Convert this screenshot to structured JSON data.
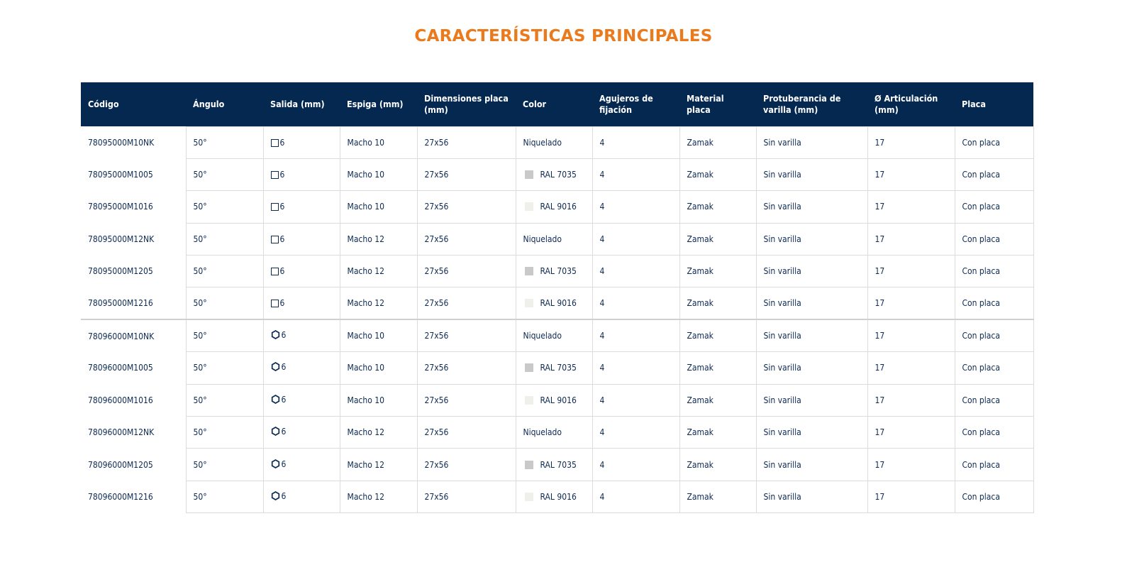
{
  "title": "CARACTERÍSTICAS PRINCIPALES",
  "colors": {
    "title": "#ea7a1c",
    "header_bg": "#052850",
    "text": "#0c2a52",
    "swatch_7035": "#c9c9c9",
    "swatch_9016": "#f0f0ea"
  },
  "headers": [
    "Código",
    "Ángulo",
    "Salida (mm)",
    "Espiga (mm)",
    "Dimensiones placa (mm)",
    "Color",
    "Agujeros de fijación",
    "Material placa",
    "Protuberancia de varilla (mm)",
    "Ø Articulación (mm)",
    "Placa"
  ],
  "rows": [
    {
      "codigo": "78095000M10NK",
      "angulo": "50°",
      "salida_icon": "square-icon",
      "salida": "6",
      "espiga": "Macho 10",
      "dimensiones": "27x56",
      "color_swatch": "",
      "color": "Niquelado",
      "agujeros": "4",
      "material": "Zamak",
      "protuberancia": "Sin varilla",
      "articulacion": "17",
      "placa": "Con placa"
    },
    {
      "codigo": "78095000M1005",
      "angulo": "50°",
      "salida_icon": "square-icon",
      "salida": "6",
      "espiga": "Macho 10",
      "dimensiones": "27x56",
      "color_swatch": "#c9c9c9",
      "color": "RAL 7035",
      "agujeros": "4",
      "material": "Zamak",
      "protuberancia": "Sin varilla",
      "articulacion": "17",
      "placa": "Con placa"
    },
    {
      "codigo": "78095000M1016",
      "angulo": "50°",
      "salida_icon": "square-icon",
      "salida": "6",
      "espiga": "Macho 10",
      "dimensiones": "27x56",
      "color_swatch": "#f0f0ea",
      "color": "RAL 9016",
      "agujeros": "4",
      "material": "Zamak",
      "protuberancia": "Sin varilla",
      "articulacion": "17",
      "placa": "Con placa"
    },
    {
      "codigo": "78095000M12NK",
      "angulo": "50°",
      "salida_icon": "square-icon",
      "salida": "6",
      "espiga": "Macho 12",
      "dimensiones": "27x56",
      "color_swatch": "",
      "color": "Niquelado",
      "agujeros": "4",
      "material": "Zamak",
      "protuberancia": "Sin varilla",
      "articulacion": "17",
      "placa": "Con placa"
    },
    {
      "codigo": "78095000M1205",
      "angulo": "50°",
      "salida_icon": "square-icon",
      "salida": "6",
      "espiga": "Macho 12",
      "dimensiones": "27x56",
      "color_swatch": "#c9c9c9",
      "color": "RAL 7035",
      "agujeros": "4",
      "material": "Zamak",
      "protuberancia": "Sin varilla",
      "articulacion": "17",
      "placa": "Con placa"
    },
    {
      "codigo": "78095000M1216",
      "angulo": "50°",
      "salida_icon": "square-icon",
      "salida": "6",
      "espiga": "Macho 12",
      "dimensiones": "27x56",
      "color_swatch": "#f0f0ea",
      "color": "RAL 9016",
      "agujeros": "4",
      "material": "Zamak",
      "protuberancia": "Sin varilla",
      "articulacion": "17",
      "placa": "Con placa"
    },
    {
      "codigo": "78096000M10NK",
      "angulo": "50°",
      "salida_icon": "hexagon-icon",
      "salida": "6",
      "espiga": "Macho 10",
      "dimensiones": "27x56",
      "color_swatch": "",
      "color": "Niquelado",
      "agujeros": "4",
      "material": "Zamak",
      "protuberancia": "Sin varilla",
      "articulacion": "17",
      "placa": "Con placa"
    },
    {
      "codigo": "78096000M1005",
      "angulo": "50°",
      "salida_icon": "hexagon-icon",
      "salida": "6",
      "espiga": "Macho 10",
      "dimensiones": "27x56",
      "color_swatch": "#c9c9c9",
      "color": "RAL 7035",
      "agujeros": "4",
      "material": "Zamak",
      "protuberancia": "Sin varilla",
      "articulacion": "17",
      "placa": "Con placa"
    },
    {
      "codigo": "78096000M1016",
      "angulo": "50°",
      "salida_icon": "hexagon-icon",
      "salida": "6",
      "espiga": "Macho 10",
      "dimensiones": "27x56",
      "color_swatch": "#f0f0ea",
      "color": "RAL 9016",
      "agujeros": "4",
      "material": "Zamak",
      "protuberancia": "Sin varilla",
      "articulacion": "17",
      "placa": "Con placa"
    },
    {
      "codigo": "78096000M12NK",
      "angulo": "50°",
      "salida_icon": "hexagon-icon",
      "salida": "6",
      "espiga": "Macho 12",
      "dimensiones": "27x56",
      "color_swatch": "",
      "color": "Niquelado",
      "agujeros": "4",
      "material": "Zamak",
      "protuberancia": "Sin varilla",
      "articulacion": "17",
      "placa": "Con placa"
    },
    {
      "codigo": "78096000M1205",
      "angulo": "50°",
      "salida_icon": "hexagon-icon",
      "salida": "6",
      "espiga": "Macho 12",
      "dimensiones": "27x56",
      "color_swatch": "#c9c9c9",
      "color": "RAL 7035",
      "agujeros": "4",
      "material": "Zamak",
      "protuberancia": "Sin varilla",
      "articulacion": "17",
      "placa": "Con placa"
    },
    {
      "codigo": "78096000M1216",
      "angulo": "50°",
      "salida_icon": "hexagon-icon",
      "salida": "6",
      "espiga": "Macho 12",
      "dimensiones": "27x56",
      "color_swatch": "#f0f0ea",
      "color": "RAL 9016",
      "agujeros": "4",
      "material": "Zamak",
      "protuberancia": "Sin varilla",
      "articulacion": "17",
      "placa": "Con placa"
    }
  ]
}
